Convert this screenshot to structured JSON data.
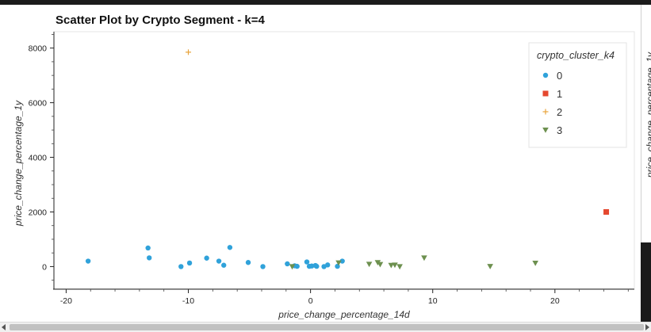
{
  "chart_data": {
    "type": "scatter",
    "title": "Scatter Plot by Crypto Segment - k=4",
    "xlabel": "price_change_percentage_14d",
    "ylabel": "price_change_percentage_1y",
    "xlim": [
      -21,
      26.5
    ],
    "ylim": [
      -800,
      8600
    ],
    "x_ticks": [
      -20,
      -10,
      0,
      10,
      20
    ],
    "y_ticks": [
      0,
      2000,
      4000,
      6000,
      8000
    ],
    "grid": false,
    "legend": {
      "title": "crypto_cluster_k4",
      "placement": "top-right"
    },
    "series": [
      {
        "name": "0",
        "marker": "circle",
        "color": "#30a2da",
        "points": [
          [
            -18.2,
            200
          ],
          [
            -13.3,
            680
          ],
          [
            -13.2,
            320
          ],
          [
            -10.6,
            0
          ],
          [
            -9.9,
            130
          ],
          [
            -8.5,
            310
          ],
          [
            -7.5,
            200
          ],
          [
            -7.1,
            50
          ],
          [
            -6.6,
            700
          ],
          [
            -5.1,
            150
          ],
          [
            -3.9,
            0
          ],
          [
            -1.9,
            100
          ],
          [
            -1.3,
            30
          ],
          [
            -1.1,
            10
          ],
          [
            -0.3,
            170
          ],
          [
            -0.1,
            10
          ],
          [
            0.1,
            20
          ],
          [
            0.4,
            40
          ],
          [
            0.5,
            10
          ],
          [
            1.1,
            0
          ],
          [
            1.4,
            60
          ],
          [
            2.2,
            10
          ],
          [
            2.6,
            200
          ]
        ]
      },
      {
        "name": "1",
        "marker": "square",
        "color": "#e5482f",
        "points": [
          [
            24.2,
            2000
          ]
        ]
      },
      {
        "name": "2",
        "marker": "plus",
        "color": "#e8a33b",
        "points": [
          [
            -10.0,
            7850
          ]
        ]
      },
      {
        "name": "3",
        "marker": "triangle-down",
        "color": "#6d904f",
        "points": [
          [
            -1.5,
            0
          ],
          [
            2.3,
            140
          ],
          [
            4.8,
            90
          ],
          [
            5.5,
            150
          ],
          [
            5.7,
            80
          ],
          [
            6.6,
            50
          ],
          [
            6.9,
            60
          ],
          [
            7.3,
            0
          ],
          [
            9.3,
            320
          ],
          [
            14.7,
            10
          ],
          [
            18.4,
            130
          ]
        ]
      }
    ]
  },
  "side_panel": {
    "clipped_label": "price_change_percentage_1y"
  }
}
